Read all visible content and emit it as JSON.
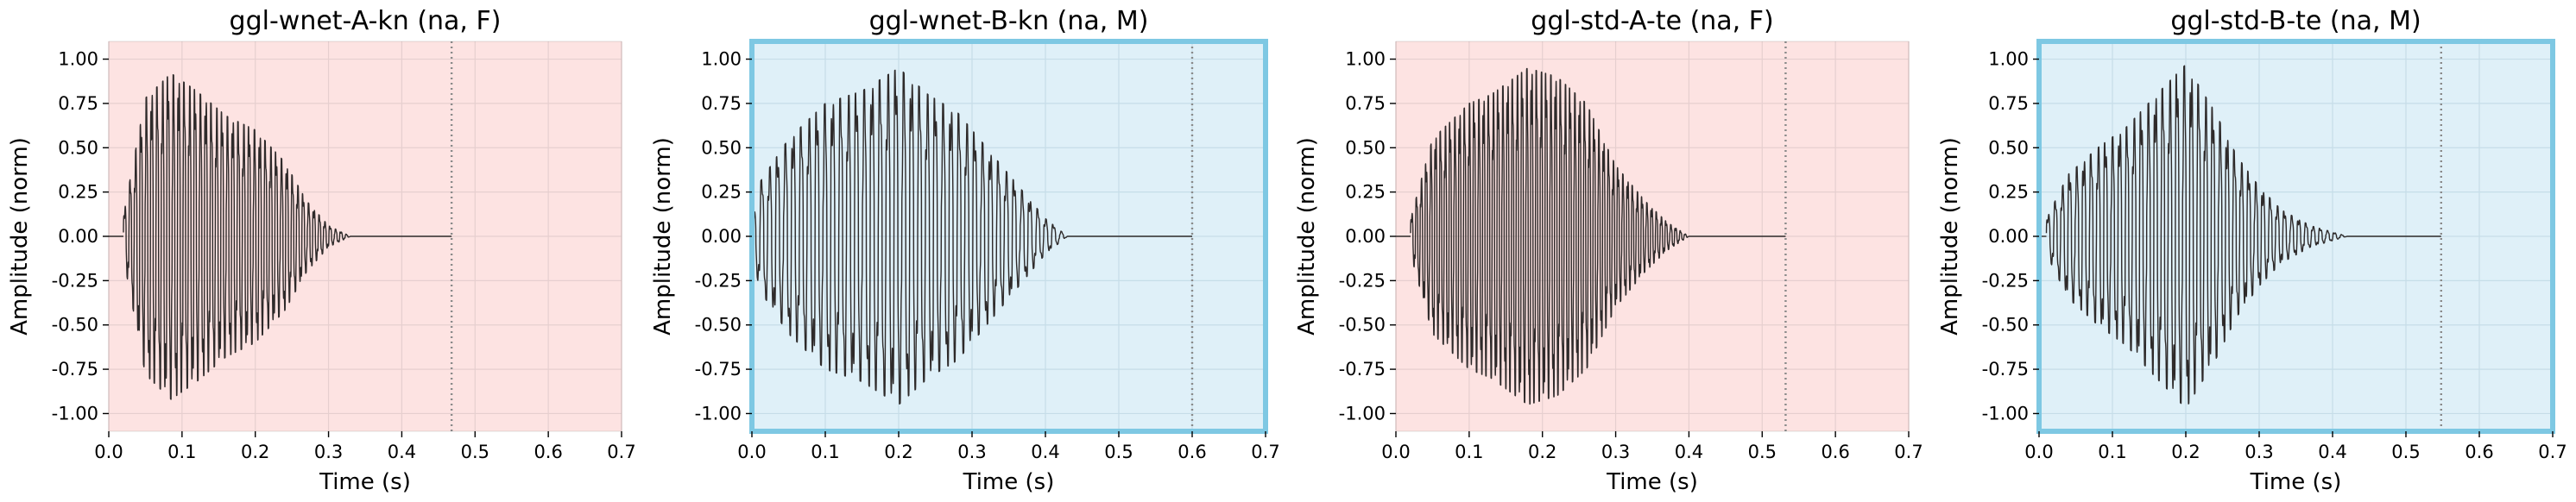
{
  "chart_data": [
    {
      "type": "line",
      "title": "ggl-wnet-A-kn (na, F)",
      "xlabel": "Time (s)",
      "ylabel": "Amplitude (norm)",
      "xlim": [
        0,
        0.7
      ],
      "ylim": [
        -1.1,
        1.1
      ],
      "xticks": [
        "0.0",
        "0.1",
        "0.2",
        "0.3",
        "0.4",
        "0.5",
        "0.6",
        "0.7"
      ],
      "yticks": [
        "-1.00",
        "-0.75",
        "-0.50",
        "-0.25",
        "0.00",
        "0.25",
        "0.50",
        "0.75",
        "1.00"
      ],
      "background": "#fde3e2",
      "highlight_border": false,
      "end_marker": 0.468,
      "waveform": {
        "start": 0.02,
        "end": 0.33,
        "signal_end": 0.468,
        "peak_time": 0.085,
        "cycles": 42,
        "envelope": [
          [
            0.0,
            0.0
          ],
          [
            0.02,
            0.12
          ],
          [
            0.05,
            0.78
          ],
          [
            0.085,
            0.92
          ],
          [
            0.12,
            0.82
          ],
          [
            0.16,
            0.68
          ],
          [
            0.2,
            0.6
          ],
          [
            0.24,
            0.42
          ],
          [
            0.27,
            0.2
          ],
          [
            0.3,
            0.06
          ],
          [
            0.33,
            0.0
          ]
        ]
      }
    },
    {
      "type": "line",
      "title": "ggl-wnet-B-kn (na, M)",
      "xlabel": "Time (s)",
      "ylabel": "Amplitude (norm)",
      "xlim": [
        0,
        0.7
      ],
      "ylim": [
        -1.1,
        1.1
      ],
      "xticks": [
        "0.0",
        "0.1",
        "0.2",
        "0.3",
        "0.4",
        "0.5",
        "0.6",
        "0.7"
      ],
      "yticks": [
        "-1.00",
        "-0.75",
        "-0.50",
        "-0.25",
        "0.00",
        "0.25",
        "0.50",
        "0.75",
        "1.00"
      ],
      "background": "#dff0f8",
      "highlight_border": true,
      "end_marker": 0.6,
      "waveform": {
        "start": 0.0,
        "end": 0.43,
        "signal_end": 0.6,
        "peak_time": 0.2,
        "cycles": 40,
        "envelope": [
          [
            0.0,
            0.05
          ],
          [
            0.01,
            0.3
          ],
          [
            0.05,
            0.55
          ],
          [
            0.1,
            0.75
          ],
          [
            0.15,
            0.82
          ],
          [
            0.2,
            0.95
          ],
          [
            0.24,
            0.8
          ],
          [
            0.28,
            0.7
          ],
          [
            0.32,
            0.5
          ],
          [
            0.36,
            0.3
          ],
          [
            0.4,
            0.1
          ],
          [
            0.43,
            0.0
          ]
        ]
      }
    },
    {
      "type": "line",
      "title": "ggl-std-A-te (na, F)",
      "xlabel": "Time (s)",
      "ylabel": "Amplitude (norm)",
      "xlim": [
        0,
        0.7
      ],
      "ylim": [
        -1.1,
        1.1
      ],
      "xticks": [
        "0.0",
        "0.1",
        "0.2",
        "0.3",
        "0.4",
        "0.5",
        "0.6",
        "0.7"
      ],
      "yticks": [
        "-1.00",
        "-0.75",
        "-0.50",
        "-0.25",
        "0.00",
        "0.25",
        "0.50",
        "0.75",
        "1.00"
      ],
      "background": "#fde3e2",
      "highlight_border": false,
      "end_marker": 0.532,
      "waveform": {
        "start": 0.02,
        "end": 0.4,
        "signal_end": 0.532,
        "peak_time": 0.18,
        "cycles": 58,
        "envelope": [
          [
            0.0,
            0.0
          ],
          [
            0.02,
            0.1
          ],
          [
            0.05,
            0.55
          ],
          [
            0.1,
            0.75
          ],
          [
            0.13,
            0.8
          ],
          [
            0.18,
            0.95
          ],
          [
            0.22,
            0.9
          ],
          [
            0.26,
            0.75
          ],
          [
            0.3,
            0.4
          ],
          [
            0.34,
            0.2
          ],
          [
            0.37,
            0.08
          ],
          [
            0.4,
            0.0
          ]
        ]
      }
    },
    {
      "type": "line",
      "title": "ggl-std-B-te (na, M)",
      "xlabel": "Time (s)",
      "ylabel": "Amplitude (norm)",
      "xlim": [
        0,
        0.7
      ],
      "ylim": [
        -1.1,
        1.1
      ],
      "xticks": [
        "0.0",
        "0.1",
        "0.2",
        "0.3",
        "0.4",
        "0.5",
        "0.6",
        "0.7"
      ],
      "yticks": [
        "-1.00",
        "-0.75",
        "-0.50",
        "-0.25",
        "0.00",
        "0.25",
        "0.50",
        "0.75",
        "1.00"
      ],
      "background": "#dff0f8",
      "highlight_border": true,
      "end_marker": 0.548,
      "waveform": {
        "start": 0.01,
        "end": 0.42,
        "signal_end": 0.548,
        "peak_time": 0.2,
        "cycles": 42,
        "envelope": [
          [
            0.0,
            0.0
          ],
          [
            0.01,
            0.1
          ],
          [
            0.04,
            0.35
          ],
          [
            0.08,
            0.5
          ],
          [
            0.12,
            0.62
          ],
          [
            0.16,
            0.8
          ],
          [
            0.2,
            0.97
          ],
          [
            0.24,
            0.7
          ],
          [
            0.27,
            0.45
          ],
          [
            0.3,
            0.28
          ],
          [
            0.33,
            0.15
          ],
          [
            0.37,
            0.06
          ],
          [
            0.42,
            0.0
          ]
        ]
      }
    }
  ],
  "colors": {
    "waveform": "#2e2a2a",
    "grid": "#e6cfcf",
    "grid_blue": "#c6dde8",
    "end_marker": "#8a8a8a",
    "highlight_border": "#7ec8e3",
    "axis": "#000000"
  }
}
